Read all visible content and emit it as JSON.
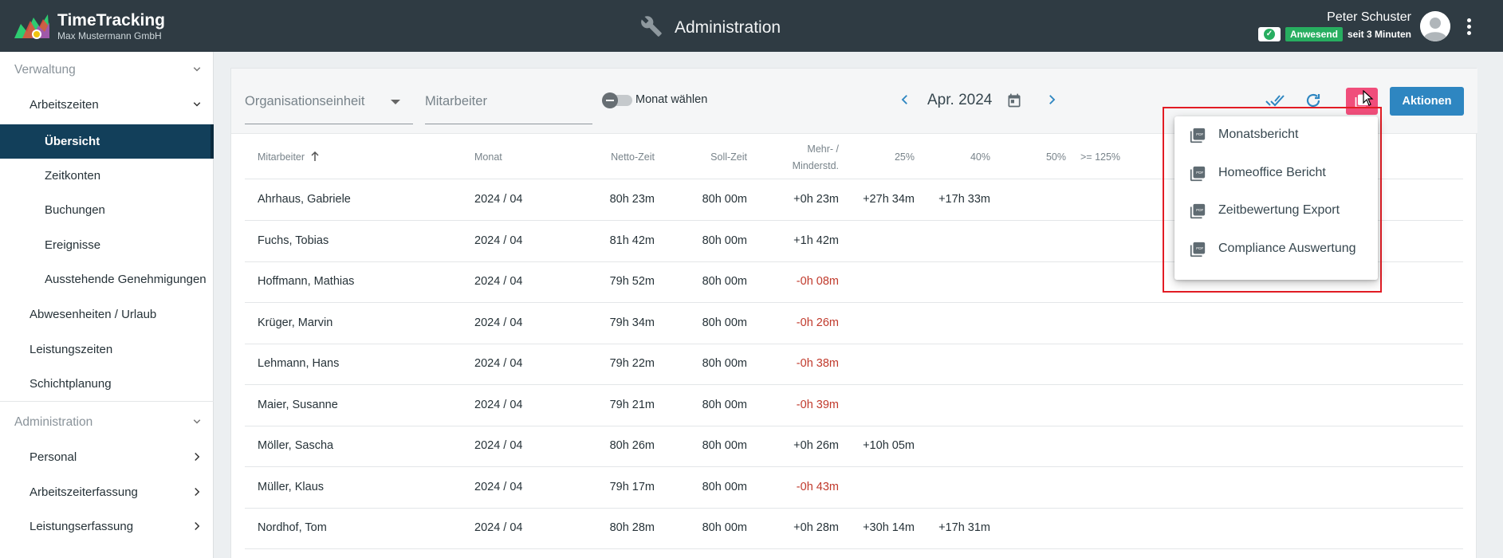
{
  "header": {
    "app_title": "TimeTracking",
    "company": "Max Mustermann GmbH",
    "page_title": "Administration",
    "user_name": "Peter Schuster",
    "status_badge": "Anwesend",
    "status_since": "seit 3 Minuten"
  },
  "sidebar": {
    "verwaltung": "Verwaltung",
    "arbeitszeiten": "Arbeitszeiten",
    "uebersicht": "Übersicht",
    "zeitkonten": "Zeitkonten",
    "buchungen": "Buchungen",
    "ereignisse": "Ereignisse",
    "genehmigungen": "Ausstehende Genehmigungen",
    "abwesenheiten": "Abwesenheiten / Urlaub",
    "leistungszeiten": "Leistungszeiten",
    "schichtplanung": "Schichtplanung",
    "administration": "Administration",
    "personal": "Personal",
    "arbeitszeiterfassung": "Arbeitszeiterfassung",
    "leistungserfassung": "Leistungserfassung"
  },
  "filters": {
    "org_unit": "Organisationseinheit",
    "employee": "Mitarbeiter",
    "toggle_label": "Monat wählen",
    "month": "Apr. 2024",
    "actions_label": "Aktionen"
  },
  "table": {
    "headers": {
      "mitarbeiter": "Mitarbeiter",
      "monat": "Monat",
      "netto": "Netto-Zeit",
      "soll": "Soll-Zeit",
      "mehr1": "Mehr- /",
      "mehr2": "Minderstd.",
      "p25": "25%",
      "p40": "40%",
      "p50": "50%",
      "p125": ">= 125%"
    },
    "rows": [
      {
        "name": "Ahrhaus, Gabriele",
        "monat": "2024 / 04",
        "netto": "80h 23m",
        "soll": "80h 00m",
        "diff": "+0h 23m",
        "p25": "+27h 34m",
        "p40": "+17h 33m"
      },
      {
        "name": "Fuchs, Tobias",
        "monat": "2024 / 04",
        "netto": "81h 42m",
        "soll": "80h 00m",
        "diff": "+1h 42m",
        "p25": "",
        "p40": ""
      },
      {
        "name": "Hoffmann, Mathias",
        "monat": "2024 / 04",
        "netto": "79h 52m",
        "soll": "80h 00m",
        "diff": "-0h 08m",
        "p25": "",
        "p40": ""
      },
      {
        "name": "Krüger, Marvin",
        "monat": "2024 / 04",
        "netto": "79h 34m",
        "soll": "80h 00m",
        "diff": "-0h 26m",
        "p25": "",
        "p40": ""
      },
      {
        "name": "Lehmann, Hans",
        "monat": "2024 / 04",
        "netto": "79h 22m",
        "soll": "80h 00m",
        "diff": "-0h 38m",
        "p25": "",
        "p40": ""
      },
      {
        "name": "Maier, Susanne",
        "monat": "2024 / 04",
        "netto": "79h 21m",
        "soll": "80h 00m",
        "diff": "-0h 39m",
        "p25": "",
        "p40": ""
      },
      {
        "name": "Möller, Sascha",
        "monat": "2024 / 04",
        "netto": "80h 26m",
        "soll": "80h 00m",
        "diff": "+0h 26m",
        "p25": "+10h 05m",
        "p40": ""
      },
      {
        "name": "Müller, Klaus",
        "monat": "2024 / 04",
        "netto": "79h 17m",
        "soll": "80h 00m",
        "diff": "-0h 43m",
        "p25": "",
        "p40": ""
      },
      {
        "name": "Nordhof, Tom",
        "monat": "2024 / 04",
        "netto": "80h 28m",
        "soll": "80h 00m",
        "diff": "+0h 28m",
        "p25": "+30h 14m",
        "p40": "+17h 31m"
      }
    ]
  },
  "export_menu": {
    "items": [
      "Monatsbericht",
      "Homeoffice Bericht",
      "Zeitbewertung Export",
      "Compliance Auswertung"
    ]
  },
  "colors": {
    "topbar": "#2f3b43",
    "active_nav": "#123f5a",
    "pdf_button": "#f04e7b",
    "actions_button": "#2e86c1",
    "negative": "#c0392b",
    "present": "#27ae60",
    "highlight_box": "#e21c24"
  },
  "icons": [
    "logo-icon",
    "wrench-icon",
    "check-icon",
    "avatar-icon",
    "kebab-icon",
    "chevron-down-icon",
    "chevron-right-icon",
    "chevron-left-icon",
    "calendar-icon",
    "done-all-icon",
    "refresh-icon",
    "pdf-icon",
    "sort-arrow-up-icon",
    "mouse-cursor-icon"
  ]
}
